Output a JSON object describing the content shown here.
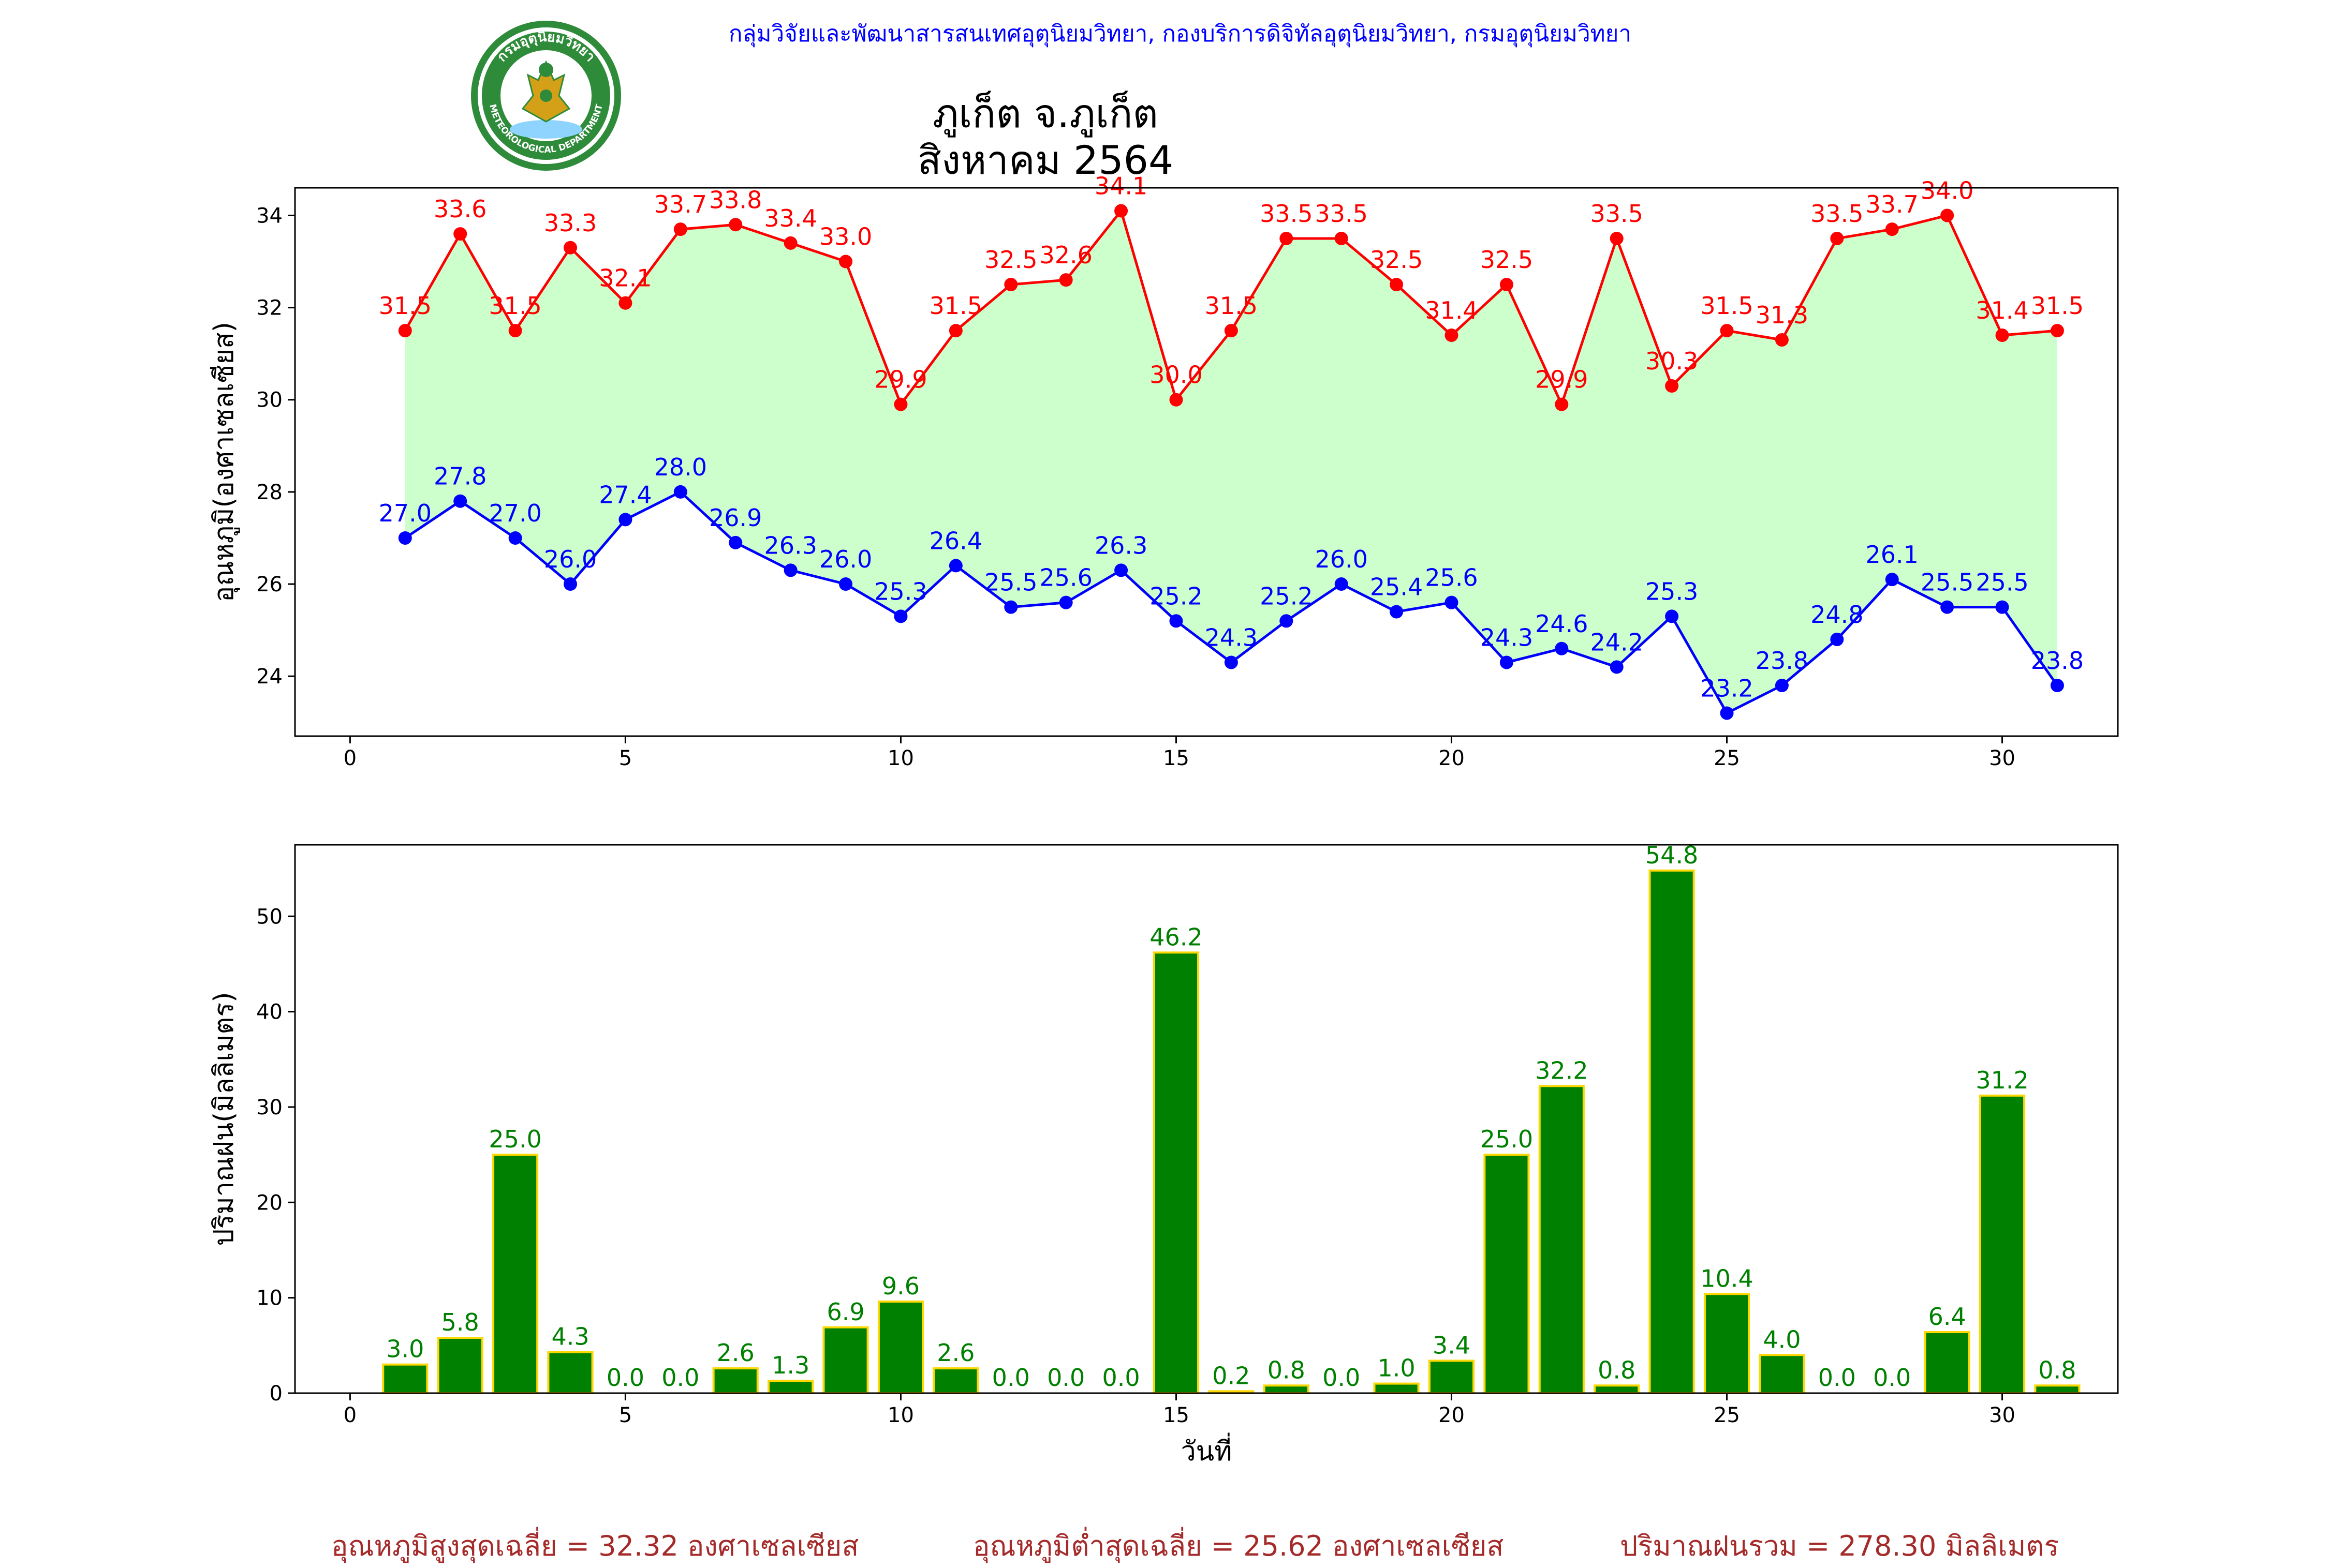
{
  "header": {
    "agency": "กลุ่มวิจัยและพัฒนาสารสนเทศอุตุนิยมวิทยา, กองบริการดิจิทัลอุตุนิยมวิทยา, กรมอุตุนิยมวิทยา",
    "title_line1": "ภูเก็ต จ.ภูเก็ต",
    "title_line2": "สิงหาคม 2564",
    "logo_text_top": "กรมอุตุนิยมวิทยา",
    "logo_text_bottom": "METEOROLOGICAL DEPARTMENT"
  },
  "summary": {
    "avg_max": "อุณหภูมิสูงสุดเฉลี่ย = 32.32 องศาเซลเซียส",
    "avg_min": "อุณหภูมิต่ำสุดเฉลี่ย = 25.62 องศาเซลเซียส",
    "total_rain": "ปริมาณฝนรวม = 278.30 มิลลิเมตร"
  },
  "colors": {
    "max_line": "#ff0000",
    "min_line": "#0000ff",
    "fill": "#ccffcc",
    "bar": "#008000",
    "bar_edge": "#ffd700",
    "rain_label": "#008000",
    "summary": "#a52a2a",
    "agency": "#0000ff"
  },
  "chart_data": [
    {
      "type": "line",
      "ylabel": "อุณหภูมิ(องศาเซลเซียส)",
      "xlim": [
        -1,
        32.1
      ],
      "ylim": [
        22.7,
        34.6
      ],
      "xticks": [
        0,
        5,
        10,
        15,
        20,
        25,
        30
      ],
      "yticks": [
        24,
        26,
        28,
        30,
        32,
        34
      ],
      "x": [
        1,
        2,
        3,
        4,
        5,
        6,
        7,
        8,
        9,
        10,
        11,
        12,
        13,
        14,
        15,
        16,
        17,
        18,
        19,
        20,
        21,
        22,
        23,
        24,
        25,
        26,
        27,
        28,
        29,
        30,
        31
      ],
      "series": [
        {
          "key": "max",
          "values": [
            31.5,
            33.6,
            31.5,
            33.3,
            32.1,
            33.7,
            33.8,
            33.4,
            33.0,
            29.9,
            31.5,
            32.5,
            32.6,
            34.1,
            30.0,
            31.5,
            33.5,
            33.5,
            32.5,
            31.4,
            32.5,
            29.9,
            33.5,
            30.3,
            31.5,
            31.3,
            33.5,
            33.7,
            34.0,
            31.4,
            31.5
          ]
        },
        {
          "key": "min",
          "values": [
            27.0,
            27.8,
            27.0,
            26.0,
            27.4,
            28.0,
            26.9,
            26.3,
            26.0,
            25.3,
            26.4,
            25.5,
            25.6,
            26.3,
            25.2,
            24.3,
            25.2,
            26.0,
            25.4,
            25.6,
            24.3,
            24.6,
            24.2,
            25.3,
            23.2,
            23.8,
            24.8,
            26.1,
            25.5,
            25.5,
            23.8
          ]
        }
      ]
    },
    {
      "type": "bar",
      "xlabel": "วันที่",
      "ylabel": "ปริมาณฝน(มิลลิเมตร)",
      "xlim": [
        -1,
        32.1
      ],
      "ylim": [
        0,
        57.5
      ],
      "xticks": [
        0,
        5,
        10,
        15,
        20,
        25,
        30
      ],
      "yticks": [
        0,
        10,
        20,
        30,
        40,
        50
      ],
      "x": [
        1,
        2,
        3,
        4,
        5,
        6,
        7,
        8,
        9,
        10,
        11,
        12,
        13,
        14,
        15,
        16,
        17,
        18,
        19,
        20,
        21,
        22,
        23,
        24,
        25,
        26,
        27,
        28,
        29,
        30,
        31
      ],
      "values": [
        3.0,
        5.8,
        25.0,
        4.3,
        0.0,
        0.0,
        2.6,
        1.3,
        6.9,
        9.6,
        2.6,
        0.0,
        0.0,
        0.0,
        46.2,
        0.2,
        0.8,
        0.0,
        1.0,
        3.4,
        25.0,
        32.2,
        0.8,
        54.8,
        10.4,
        4.0,
        0.0,
        0.0,
        6.4,
        31.2,
        0.8
      ]
    }
  ]
}
